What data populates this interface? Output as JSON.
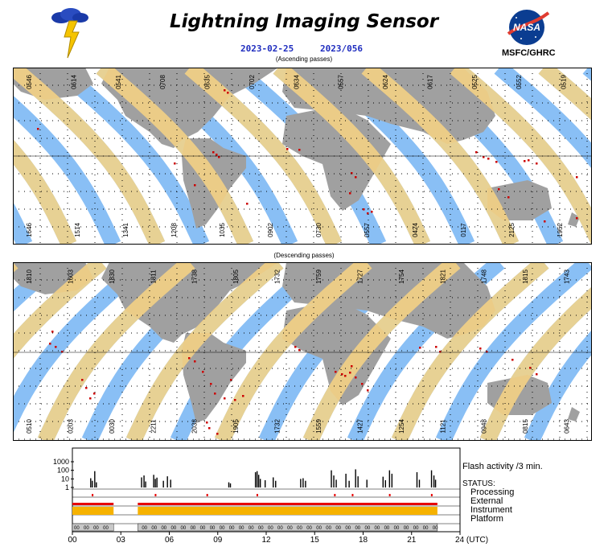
{
  "header": {
    "title": "Lightning Imaging Sensor",
    "date_iso": "2023-02-25",
    "date_doy": "2023/056",
    "logo_caption": "MSFC/GHRC",
    "nasa_logo_text": "NASA"
  },
  "maps": {
    "ascending_label": "(Ascending passes)",
    "descending_label": "(Descending passes)",
    "ascending_top_times": [
      "0546",
      "0614",
      "0541",
      "0708",
      "0635",
      "0702",
      "0634",
      "0557",
      "0624",
      "0617",
      "0525",
      "0552",
      "0519"
    ],
    "ascending_bottom_times": [
      "1646",
      "1514",
      "1341",
      "1208",
      "1035",
      "0902",
      "0730",
      "0557",
      "0424",
      "0117",
      "2125",
      "1952"
    ],
    "descending_top_times": [
      "1810",
      "1603",
      "1830",
      "1811",
      "1738",
      "1805",
      "1732",
      "1759",
      "1727",
      "1754",
      "1821",
      "1748",
      "1815",
      "1743"
    ],
    "descending_bottom_times": [
      "0510",
      "0203",
      "0030",
      "2211",
      "2038",
      "1905",
      "1732",
      "1559",
      "1427",
      "1254",
      "1121",
      "0948",
      "0815",
      "0643"
    ]
  },
  "chart_data": {
    "type": "bar",
    "title": "",
    "xlabel": "24 (UTC)",
    "ylabel": "",
    "x_tick_labels": [
      "00",
      "03",
      "06",
      "09",
      "12",
      "15",
      "18",
      "21",
      "24 (UTC)"
    ],
    "x_range_hours": [
      0,
      24
    ],
    "y_scale": "log",
    "y_tick_labels": [
      "1000",
      "100",
      "10",
      "1"
    ],
    "ylim": [
      1,
      1000
    ],
    "flash_label": "Flash activity /3 min.",
    "series": [
      {
        "name": "Flash activity /3 min.",
        "points": [
          [
            1.1,
            12
          ],
          [
            1.2,
            6
          ],
          [
            1.35,
            80
          ],
          [
            1.45,
            4
          ],
          [
            4.25,
            15
          ],
          [
            4.4,
            25
          ],
          [
            4.5,
            5
          ],
          [
            5.0,
            30
          ],
          [
            5.1,
            10
          ],
          [
            5.2,
            14
          ],
          [
            5.6,
            6
          ],
          [
            5.85,
            20
          ],
          [
            6.05,
            8
          ],
          [
            9.65,
            4
          ],
          [
            9.75,
            3
          ],
          [
            11.3,
            60
          ],
          [
            11.4,
            80
          ],
          [
            11.5,
            30
          ],
          [
            11.6,
            10
          ],
          [
            11.9,
            7
          ],
          [
            12.4,
            15
          ],
          [
            12.55,
            6
          ],
          [
            14.1,
            10
          ],
          [
            14.25,
            12
          ],
          [
            14.4,
            6
          ],
          [
            16.0,
            100
          ],
          [
            16.15,
            25
          ],
          [
            16.3,
            8
          ],
          [
            16.9,
            40
          ],
          [
            17.1,
            6
          ],
          [
            17.5,
            130
          ],
          [
            17.65,
            20
          ],
          [
            18.2,
            8
          ],
          [
            19.2,
            18
          ],
          [
            19.35,
            7
          ],
          [
            19.6,
            100
          ],
          [
            19.75,
            40
          ],
          [
            21.3,
            60
          ],
          [
            21.45,
            8
          ],
          [
            22.2,
            100
          ],
          [
            22.35,
            25
          ],
          [
            22.45,
            8
          ]
        ]
      }
    ],
    "status": {
      "title": "STATUS:",
      "rows": [
        "Processing",
        "External",
        "Instrument",
        "Platform"
      ],
      "instrument_gap_hours": [
        2.55,
        4.05
      ],
      "instrument_active_hours": [
        0,
        22.6
      ],
      "platform_gap_hours": [
        2.55,
        4.05
      ],
      "platform_active_hours": [
        0,
        22.6
      ],
      "platform_tick_text": "00"
    }
  },
  "colors": {
    "ocean": "#ffffff",
    "land": "#a0a0a0",
    "swath": "#89bff5",
    "coverage": "#f8d382",
    "lightning": "#cc0000",
    "date_text": "#1f2dbf",
    "instrument_fill": "#f6b200",
    "instrument_top": "#e60000",
    "platform_fill": "#c8c8c8"
  }
}
